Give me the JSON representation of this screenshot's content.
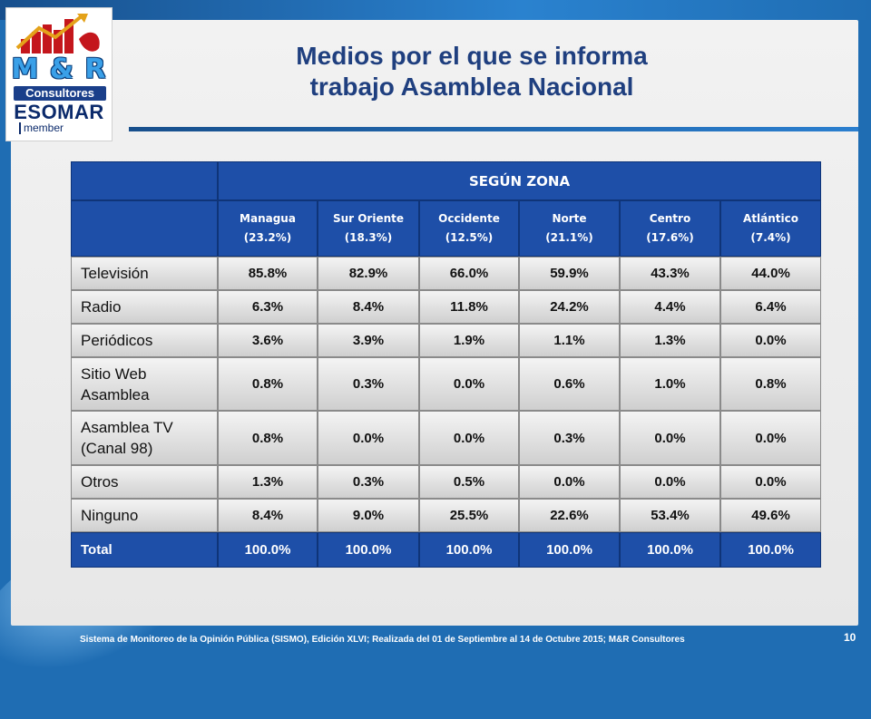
{
  "logo": {
    "brand": "M & R",
    "consultores": "Consultores",
    "esomar": "ESOMAR",
    "member": "member"
  },
  "title": {
    "line1": "Medios por el que se informa",
    "line2": "trabajo Asamblea Nacional"
  },
  "table": {
    "group_header": "SEGÚN ZONA",
    "columns": [
      "Managua\n(23.2%)",
      "Sur Oriente\n(18.3%)",
      "Occidente\n(12.5%)",
      "Norte\n(21.1%)",
      "Centro\n(17.6%)",
      "Atlántico\n(7.4%)"
    ],
    "rows": [
      {
        "label": "Televisión",
        "values": [
          "85.8%",
          "82.9%",
          "66.0%",
          "59.9%",
          "43.3%",
          "44.0%"
        ]
      },
      {
        "label": "Radio",
        "values": [
          "6.3%",
          "8.4%",
          "11.8%",
          "24.2%",
          "4.4%",
          "6.4%"
        ]
      },
      {
        "label": "Periódicos",
        "values": [
          "3.6%",
          "3.9%",
          "1.9%",
          "1.1%",
          "1.3%",
          "0.0%"
        ]
      },
      {
        "label": "Sitio Web Asamblea",
        "values": [
          "0.8%",
          "0.3%",
          "0.0%",
          "0.6%",
          "1.0%",
          "0.8%"
        ]
      },
      {
        "label": "Asamblea TV (Canal 98)",
        "values": [
          "0.8%",
          "0.0%",
          "0.0%",
          "0.3%",
          "0.0%",
          "0.0%"
        ]
      },
      {
        "label": "Otros",
        "values": [
          "1.3%",
          "0.3%",
          "0.5%",
          "0.0%",
          "0.0%",
          "0.0%"
        ]
      },
      {
        "label": "Ninguno",
        "values": [
          "8.4%",
          "9.0%",
          "25.5%",
          "22.6%",
          "53.4%",
          "49.6%"
        ]
      }
    ],
    "total": {
      "label": "Total",
      "values": [
        "100.0%",
        "100.0%",
        "100.0%",
        "100.0%",
        "100.0%",
        "100.0%"
      ]
    }
  },
  "footer": "Sistema de Monitoreo de la Opinión Pública (SISMO), Edición XLVI; Realizada del 01 de Septiembre al 14 de Octubre 2015; M&R Consultores",
  "page_number": "10"
}
